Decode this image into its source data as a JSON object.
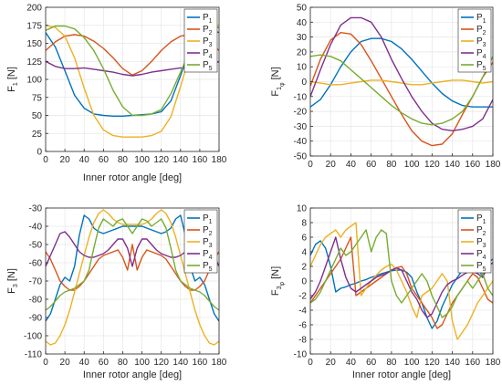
{
  "colors": {
    "P1": "#0072BD",
    "P2": "#D95319",
    "P3": "#EDB120",
    "P4": "#7E2F8E",
    "P5": "#77AC30",
    "grid": "#e6e6e6",
    "axis": "#262626"
  },
  "chart_data": [
    {
      "type": "line",
      "ylabel_main": "F",
      "ylabel_sub": "1",
      "ylabel_subsub": "",
      "ylabel_unit": "[N]",
      "xlabel": "Inner rotor angle [deg]",
      "xlim": [
        0,
        180
      ],
      "ylim": [
        0,
        200
      ],
      "xticks": [
        0,
        20,
        40,
        60,
        80,
        100,
        120,
        140,
        160,
        180
      ],
      "yticks": [
        0,
        25,
        50,
        75,
        100,
        125,
        150,
        175,
        200
      ],
      "grid": true,
      "legend_position": "top-right",
      "legend": [
        {
          "main": "P",
          "sub": "1"
        },
        {
          "main": "P",
          "sub": "2"
        },
        {
          "main": "P",
          "sub": "3"
        },
        {
          "main": "P",
          "sub": "4"
        },
        {
          "main": "P",
          "sub": "5"
        }
      ],
      "x": [
        0,
        10,
        20,
        30,
        40,
        50,
        60,
        70,
        80,
        90,
        100,
        110,
        120,
        130,
        140,
        150,
        160,
        170,
        180
      ],
      "series": [
        {
          "values": [
            165,
            145,
            112,
            78,
            60,
            52,
            50,
            49,
            49,
            50,
            51,
            52,
            55,
            70,
            105,
            145,
            163,
            170,
            165
          ]
        },
        {
          "values": [
            140,
            152,
            160,
            162,
            160,
            153,
            143,
            130,
            115,
            106,
            112,
            125,
            140,
            152,
            160,
            162,
            160,
            152,
            140
          ]
        },
        {
          "values": [
            175,
            172,
            160,
            130,
            88,
            50,
            30,
            22,
            20,
            20,
            20,
            22,
            28,
            48,
            90,
            135,
            165,
            174,
            175
          ]
        },
        {
          "values": [
            125,
            118,
            115,
            115,
            116,
            114,
            112,
            110,
            107,
            105,
            107,
            110,
            112,
            114,
            116,
            115,
            115,
            118,
            125
          ]
        },
        {
          "values": [
            168,
            174,
            174,
            170,
            158,
            140,
            115,
            85,
            62,
            50,
            50,
            52,
            58,
            80,
            110,
            140,
            160,
            170,
            172
          ]
        }
      ]
    },
    {
      "type": "line",
      "ylabel_main": "F",
      "ylabel_sub": "1",
      "ylabel_subsub": "φ",
      "ylabel_unit": "[N]",
      "xlabel": "",
      "xlim": [
        0,
        180
      ],
      "ylim": [
        -50,
        50
      ],
      "xticks": [
        0,
        20,
        40,
        60,
        80,
        100,
        120,
        140,
        160,
        180
      ],
      "yticks": [
        -50,
        -40,
        -30,
        -20,
        -10,
        0,
        10,
        20,
        30,
        40,
        50
      ],
      "grid": true,
      "legend_position": "top-right",
      "legend": [
        {
          "main": "P",
          "sub": "1"
        },
        {
          "main": "P",
          "sub": "2"
        },
        {
          "main": "P",
          "sub": "3"
        },
        {
          "main": "P",
          "sub": "4"
        },
        {
          "main": "P",
          "sub": "5"
        }
      ],
      "x": [
        0,
        10,
        20,
        30,
        40,
        50,
        60,
        70,
        80,
        90,
        100,
        110,
        120,
        130,
        140,
        150,
        160,
        170,
        180
      ],
      "series": [
        {
          "values": [
            -17,
            -12,
            -2,
            10,
            20,
            27,
            29,
            29,
            27,
            22,
            15,
            7,
            -1,
            -8,
            -13,
            -16,
            -17,
            -17,
            -17
          ]
        },
        {
          "values": [
            -3,
            15,
            28,
            33,
            32,
            25,
            14,
            2,
            -10,
            -22,
            -33,
            -40,
            -43,
            -42,
            -35,
            -22,
            -10,
            3,
            13
          ]
        },
        {
          "values": [
            0,
            -1,
            -2,
            -2,
            -1,
            0,
            1,
            1,
            0,
            -1,
            -2,
            -2,
            -1,
            0,
            1,
            1,
            0,
            -1,
            0
          ]
        },
        {
          "values": [
            -10,
            8,
            25,
            38,
            43,
            43,
            40,
            30,
            15,
            2,
            -10,
            -20,
            -28,
            -32,
            -33,
            -32,
            -30,
            -25,
            -12
          ]
        },
        {
          "values": [
            17,
            18,
            17,
            14,
            8,
            2,
            -4,
            -10,
            -16,
            -21,
            -25,
            -28,
            -29,
            -28,
            -25,
            -20,
            -10,
            3,
            17
          ]
        }
      ]
    },
    {
      "type": "line",
      "ylabel_main": "F",
      "ylabel_sub": "3",
      "ylabel_subsub": "",
      "ylabel_unit": "[N]",
      "xlabel": "Inner rotor angle [deg]",
      "xlim": [
        0,
        180
      ],
      "ylim": [
        -110,
        -30
      ],
      "xticks": [
        0,
        20,
        40,
        60,
        80,
        100,
        120,
        140,
        160,
        180
      ],
      "yticks": [
        -110,
        -100,
        -90,
        -80,
        -70,
        -60,
        -50,
        -40,
        -30
      ],
      "grid": true,
      "legend_position": "top-right",
      "legend": [
        {
          "main": "P",
          "sub": "1"
        },
        {
          "main": "P",
          "sub": "2"
        },
        {
          "main": "P",
          "sub": "3"
        },
        {
          "main": "P",
          "sub": "4"
        },
        {
          "main": "P",
          "sub": "5"
        }
      ],
      "x": [
        0,
        5,
        10,
        15,
        20,
        25,
        30,
        35,
        40,
        45,
        50,
        55,
        60,
        65,
        70,
        75,
        80,
        85,
        90,
        95,
        100,
        105,
        110,
        115,
        120,
        125,
        130,
        135,
        140,
        145,
        150,
        155,
        160,
        165,
        170,
        175,
        180
      ],
      "series": [
        {
          "values": [
            -92,
            -88,
            -80,
            -72,
            -68,
            -70,
            -62,
            -45,
            -34,
            -36,
            -41,
            -43,
            -44,
            -43,
            -42,
            -41,
            -40,
            -40,
            -40,
            -40,
            -40,
            -41,
            -42,
            -43,
            -44,
            -43,
            -41,
            -36,
            -34,
            -45,
            -62,
            -70,
            -68,
            -72,
            -80,
            -88,
            -92
          ]
        },
        {
          "values": [
            -54,
            -58,
            -64,
            -70,
            -73,
            -75,
            -75,
            -73,
            -70,
            -66,
            -62,
            -58,
            -56,
            -55,
            -54,
            -53,
            -57,
            -64,
            -50,
            -64,
            -57,
            -53,
            -54,
            -55,
            -56,
            -58,
            -62,
            -66,
            -70,
            -73,
            -75,
            -75,
            -73,
            -70,
            -64,
            -58,
            -54
          ]
        },
        {
          "values": [
            -103,
            -105,
            -104,
            -100,
            -94,
            -86,
            -76,
            -66,
            -56,
            -46,
            -38,
            -33,
            -31,
            -33,
            -36,
            -38,
            -39,
            -39,
            -39,
            -39,
            -39,
            -38,
            -36,
            -33,
            -31,
            -33,
            -38,
            -46,
            -56,
            -66,
            -76,
            -86,
            -94,
            -100,
            -104,
            -105,
            -103
          ]
        },
        {
          "values": [
            -62,
            -56,
            -50,
            -44,
            -43,
            -46,
            -50,
            -54,
            -56,
            -57,
            -57,
            -56,
            -55,
            -53,
            -50,
            -47,
            -47,
            -52,
            -62,
            -52,
            -47,
            -47,
            -50,
            -53,
            -55,
            -56,
            -57,
            -57,
            -56,
            -54,
            -50,
            -46,
            -43,
            -44,
            -50,
            -56,
            -62
          ]
        },
        {
          "values": [
            -86,
            -84,
            -81,
            -78,
            -76,
            -75,
            -74,
            -72,
            -70,
            -64,
            -52,
            -41,
            -36,
            -38,
            -40,
            -37,
            -36,
            -40,
            -44,
            -40,
            -36,
            -37,
            -40,
            -38,
            -36,
            -41,
            -52,
            -64,
            -70,
            -72,
            -74,
            -75,
            -76,
            -78,
            -81,
            -84,
            -86
          ]
        }
      ]
    },
    {
      "type": "line",
      "ylabel_main": "F",
      "ylabel_sub": "3",
      "ylabel_subsub": "φ",
      "ylabel_unit": "[N]",
      "xlabel": "Inner rotor angle [deg]",
      "xlim": [
        0,
        180
      ],
      "ylim": [
        -10,
        10
      ],
      "xticks": [
        0,
        20,
        40,
        60,
        80,
        100,
        120,
        140,
        160,
        180
      ],
      "yticks": [
        -10,
        -8,
        -6,
        -4,
        -2,
        0,
        2,
        4,
        6,
        8,
        10
      ],
      "grid": true,
      "legend_position": "top-right",
      "legend": [
        {
          "main": "P",
          "sub": "1"
        },
        {
          "main": "P",
          "sub": "2"
        },
        {
          "main": "P",
          "sub": "3"
        },
        {
          "main": "P",
          "sub": "4"
        },
        {
          "main": "P",
          "sub": "5"
        }
      ],
      "x": [
        0,
        5,
        10,
        15,
        20,
        25,
        30,
        35,
        40,
        45,
        50,
        55,
        60,
        65,
        70,
        75,
        80,
        85,
        90,
        95,
        100,
        105,
        110,
        115,
        120,
        125,
        130,
        135,
        140,
        145,
        150,
        155,
        160,
        165,
        170,
        175,
        180
      ],
      "series": [
        {
          "values": [
            3.5,
            5,
            5.5,
            4.5,
            2,
            -1.5,
            -1,
            -0.8,
            -0.5,
            -0.3,
            0,
            0.2,
            0.5,
            0.7,
            1,
            1.2,
            1.4,
            1.5,
            1.5,
            1.2,
            0.5,
            -1.5,
            -3,
            -5,
            -6.5,
            -5.5,
            -3.5,
            -2,
            -0.5,
            0.5,
            1.5,
            2.5,
            3,
            2,
            0.5,
            2.5,
            3
          ]
        },
        {
          "values": [
            -3,
            -2,
            -1,
            0,
            1,
            2,
            3,
            4.5,
            6,
            -2,
            -1.5,
            -1,
            -0.5,
            0,
            0.5,
            1,
            1.5,
            1.8,
            2,
            1,
            -1,
            -2,
            -3,
            -4,
            -5,
            -6.5,
            -6,
            -4.5,
            -3,
            -2,
            -1,
            0,
            1,
            0.5,
            -1,
            -2.5,
            -3
          ]
        },
        {
          "values": [
            2,
            3.5,
            5,
            6,
            6.5,
            7,
            6,
            7,
            7.5,
            8,
            -2,
            -1,
            0,
            0.8,
            1.5,
            2,
            2.3,
            1.5,
            0,
            -1.5,
            -3.5,
            -5,
            -2,
            -1.5,
            -1,
            0,
            1,
            0,
            -5.5,
            -8,
            -7,
            -6,
            -4.5,
            -3,
            -2,
            -1,
            0
          ]
        },
        {
          "values": [
            -2.5,
            -1.5,
            0,
            2,
            4,
            6,
            3,
            0.5,
            -1,
            -1.5,
            -1,
            -0.5,
            0,
            0.5,
            0.8,
            1,
            1.5,
            1.8,
            1.5,
            0,
            -1.5,
            -2.5,
            -4,
            -5,
            -4.5,
            -3,
            -1.5,
            -0.5,
            0,
            0.3,
            0.8,
            1.2,
            1.3,
            1,
            0.5,
            2,
            2.5
          ]
        },
        {
          "values": [
            -3,
            -2.5,
            -1.5,
            0,
            1.5,
            3,
            4.5,
            3.5,
            4,
            5,
            6,
            7,
            4,
            6,
            7,
            6.5,
            0,
            -2,
            -3,
            -2,
            -1,
            0,
            1,
            0,
            -2,
            -3.5,
            -5,
            -4.5,
            -3.5,
            -2,
            -1,
            0,
            -1,
            0,
            1,
            -1,
            -2
          ]
        }
      ]
    }
  ]
}
